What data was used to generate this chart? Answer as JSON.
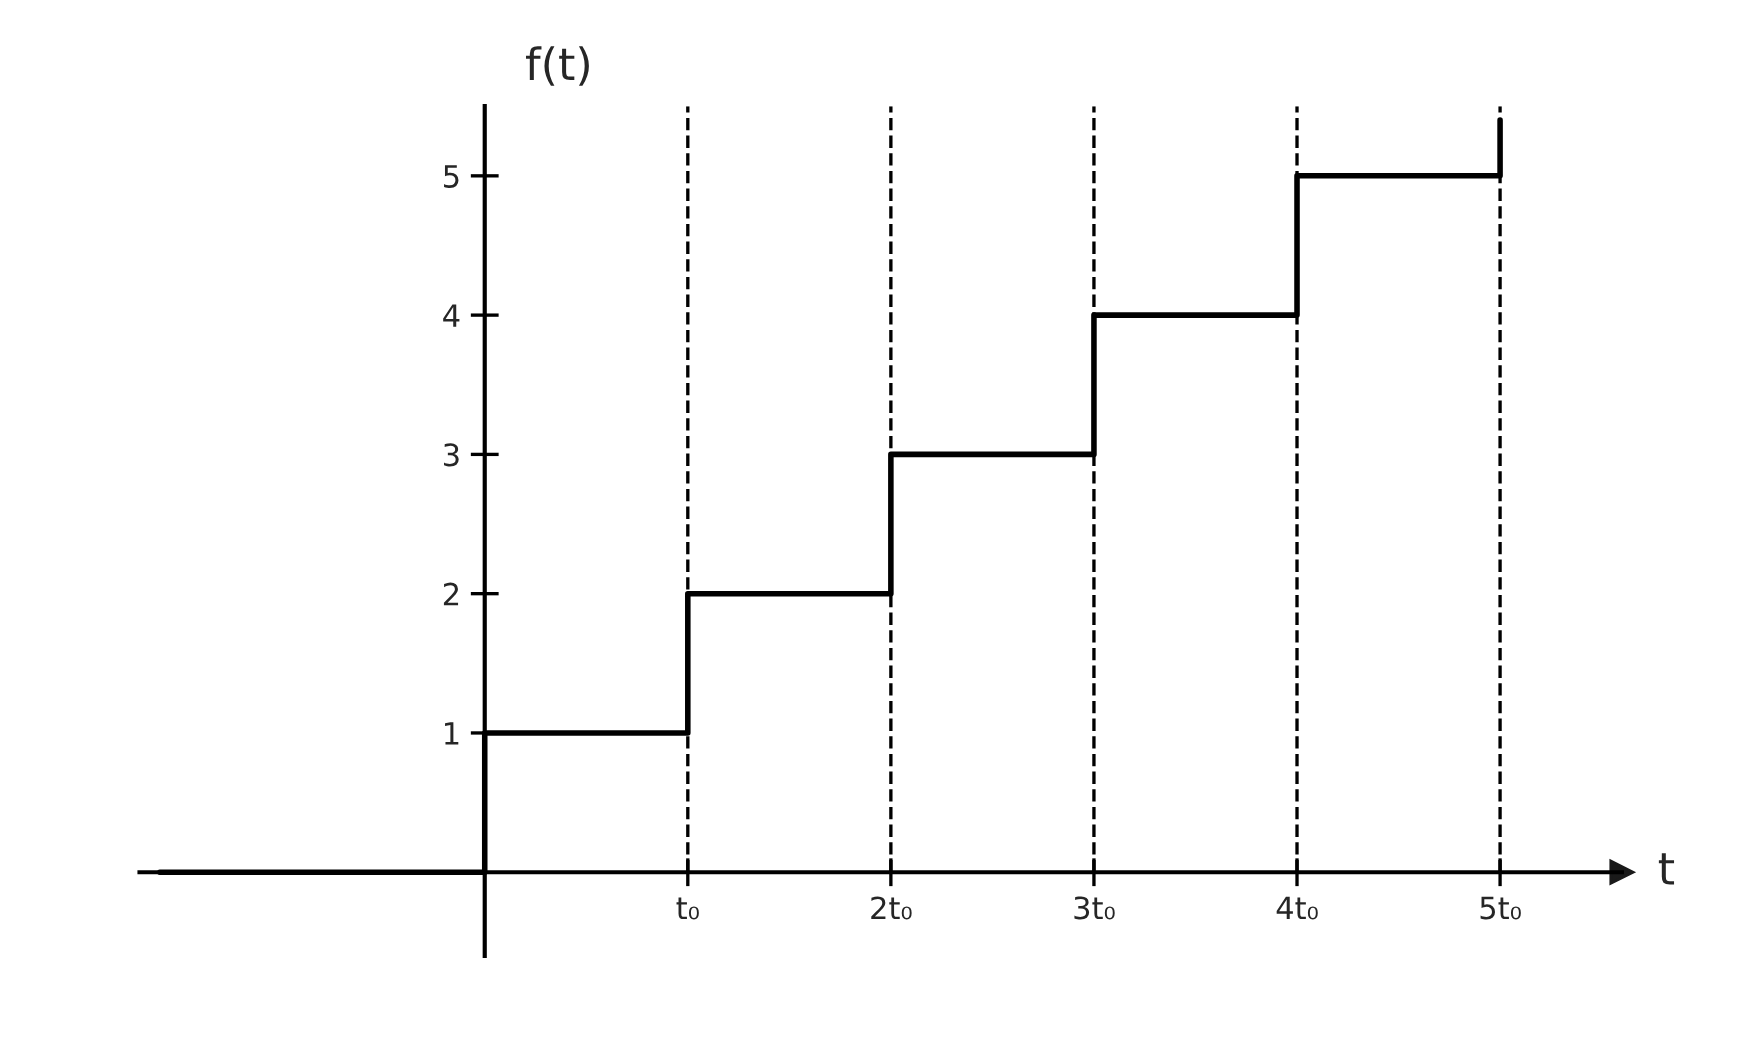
{
  "chart_data": {
    "type": "step",
    "xlabel": "t",
    "ylabel": "f(t)",
    "x": [
      -1.6,
      0,
      1,
      2,
      3,
      4,
      5
    ],
    "series": [
      {
        "color": "#000000",
        "values": [
          0,
          1,
          2,
          3,
          4,
          5,
          5.4
        ]
      }
    ],
    "xlim": [
      -1.7,
      5.6
    ],
    "ylim": [
      -0.6,
      5.5
    ],
    "xticks": [
      {
        "value": 1,
        "label": "t₀"
      },
      {
        "value": 2,
        "label": "2t₀"
      },
      {
        "value": 3,
        "label": "3t₀"
      },
      {
        "value": 4,
        "label": "4t₀"
      },
      {
        "value": 5,
        "label": "5t₀"
      }
    ],
    "yticks": [
      1,
      2,
      3,
      4,
      5
    ],
    "ref_lines": [
      {
        "axis": "x",
        "value": 1,
        "line_style": "dashed",
        "color": "#000000"
      },
      {
        "axis": "x",
        "value": 2,
        "line_style": "dashed",
        "color": "#000000"
      },
      {
        "axis": "x",
        "value": 3,
        "line_style": "dashed",
        "color": "#000000"
      },
      {
        "axis": "x",
        "value": 4,
        "line_style": "dashed",
        "color": "#000000"
      },
      {
        "axis": "x",
        "value": 5,
        "line_style": "dashed",
        "color": "#000000"
      }
    ],
    "grid": false,
    "legend": false
  }
}
